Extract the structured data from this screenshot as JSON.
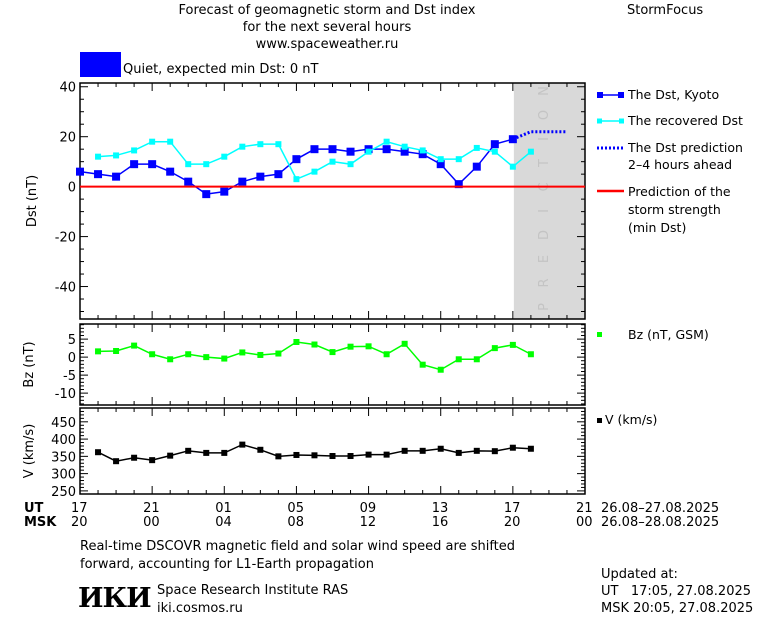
{
  "header": {
    "title_line1": "Forecast of geomagnetic storm and Dst index",
    "title_line2": "for the next several hours",
    "website": "www.spaceweather.ru",
    "brand": "StormFocus",
    "status_text": "Quiet, expected min Dst: 0 nT",
    "status_color": "#0000ff"
  },
  "legend": {
    "dst_kyoto": "The Dst, Kyoto",
    "recovered": "The recovered Dst",
    "prediction_line1": "The Dst prediction",
    "prediction_line2": "2–4 hours ahead",
    "storm_line1": "Prediction of the",
    "storm_line2": "storm strength",
    "storm_line3": "(min Dst)",
    "bz": "Bz (nT, GSM)",
    "v": "V (km/s)"
  },
  "x_axis": {
    "ut_label": "UT",
    "msk_label": "MSK",
    "ut_ticks": [
      "17",
      "21",
      "01",
      "05",
      "09",
      "13",
      "17",
      "21"
    ],
    "msk_ticks": [
      "20",
      "00",
      "04",
      "08",
      "12",
      "16",
      "20",
      "00"
    ],
    "ut_range": "26.08–27.08.2025",
    "msk_range": "26.08–28.08.2025"
  },
  "chart_data": [
    {
      "type": "line",
      "ylabel": "Dst (nT)",
      "ylim": [
        -53,
        41.5
      ],
      "yticks": [
        -40,
        -20,
        0,
        20,
        40
      ],
      "xlim_hours_from_17UT": [
        0,
        28
      ],
      "prediction_band_label": "PREDICTION",
      "prediction_band_start_hour": 24,
      "series": [
        {
          "name": "The Dst, Kyoto",
          "color": "#0000ff",
          "start_hour": 0,
          "values": [
            6,
            5,
            4,
            9,
            9,
            6,
            2,
            -3,
            -2,
            2,
            4,
            5,
            11,
            15,
            15,
            14,
            15,
            15,
            14,
            13,
            9,
            1,
            8,
            17,
            19
          ]
        },
        {
          "name": "The recovered Dst",
          "color": "#00ffff",
          "start_hour": 1,
          "values": [
            12,
            12.5,
            14.5,
            18,
            18,
            9,
            9,
            12,
            16,
            17,
            17,
            3,
            6,
            10,
            9,
            14,
            18,
            16,
            14.5,
            11,
            11,
            15.5,
            14,
            8,
            14
          ]
        },
        {
          "name": "The Dst prediction 2–4 hours ahead",
          "color": "#0000ff",
          "style": "dotted",
          "hours": [
            24,
            25,
            27
          ],
          "values": [
            19,
            22,
            22
          ]
        },
        {
          "name": "Prediction of the storm strength (min Dst)",
          "color": "#ff0000",
          "value": 0
        }
      ]
    },
    {
      "type": "line",
      "ylabel": "Bz (nT)",
      "ylim": [
        -13.3,
        9.2
      ],
      "yticks": [
        -10,
        -5,
        0,
        5
      ],
      "series": [
        {
          "name": "Bz (nT, GSM)",
          "color": "#00ff00",
          "start_hour": 1,
          "values": [
            1.6,
            1.7,
            3.2,
            0.8,
            -0.6,
            0.8,
            0,
            -0.4,
            1.3,
            0.6,
            1,
            4.2,
            3.5,
            1.4,
            2.9,
            3,
            0.8,
            3.7,
            -2.1,
            -3.5,
            -0.6,
            -0.6,
            2.5,
            3.4,
            0.8
          ]
        }
      ]
    },
    {
      "type": "line",
      "ylabel": "V (km/s)",
      "ylim": [
        241,
        490
      ],
      "yticks": [
        250,
        300,
        350,
        400,
        450
      ],
      "series": [
        {
          "name": "V (km/s)",
          "color": "#000000",
          "start_hour": 1,
          "values": [
            362,
            336,
            346,
            339,
            352,
            366,
            360,
            360,
            384,
            369,
            350,
            354,
            353,
            351,
            351,
            355,
            355,
            366,
            366,
            372,
            360,
            366,
            365,
            375,
            372
          ]
        }
      ]
    }
  ],
  "footer": {
    "note_line1": "Real-time DSCOVR magnetic field and solar wind speed are shifted",
    "note_line2": "forward, accounting for L1-Earth propagation",
    "institute": "Space Research Institute RAS",
    "institute_url": "iki.cosmos.ru",
    "logo_text": "ИКИ",
    "updated_label": "Updated at:",
    "updated_ut": "UT   17:05, 27.08.2025",
    "updated_msk": "MSK 20:05, 27.08.2025"
  }
}
